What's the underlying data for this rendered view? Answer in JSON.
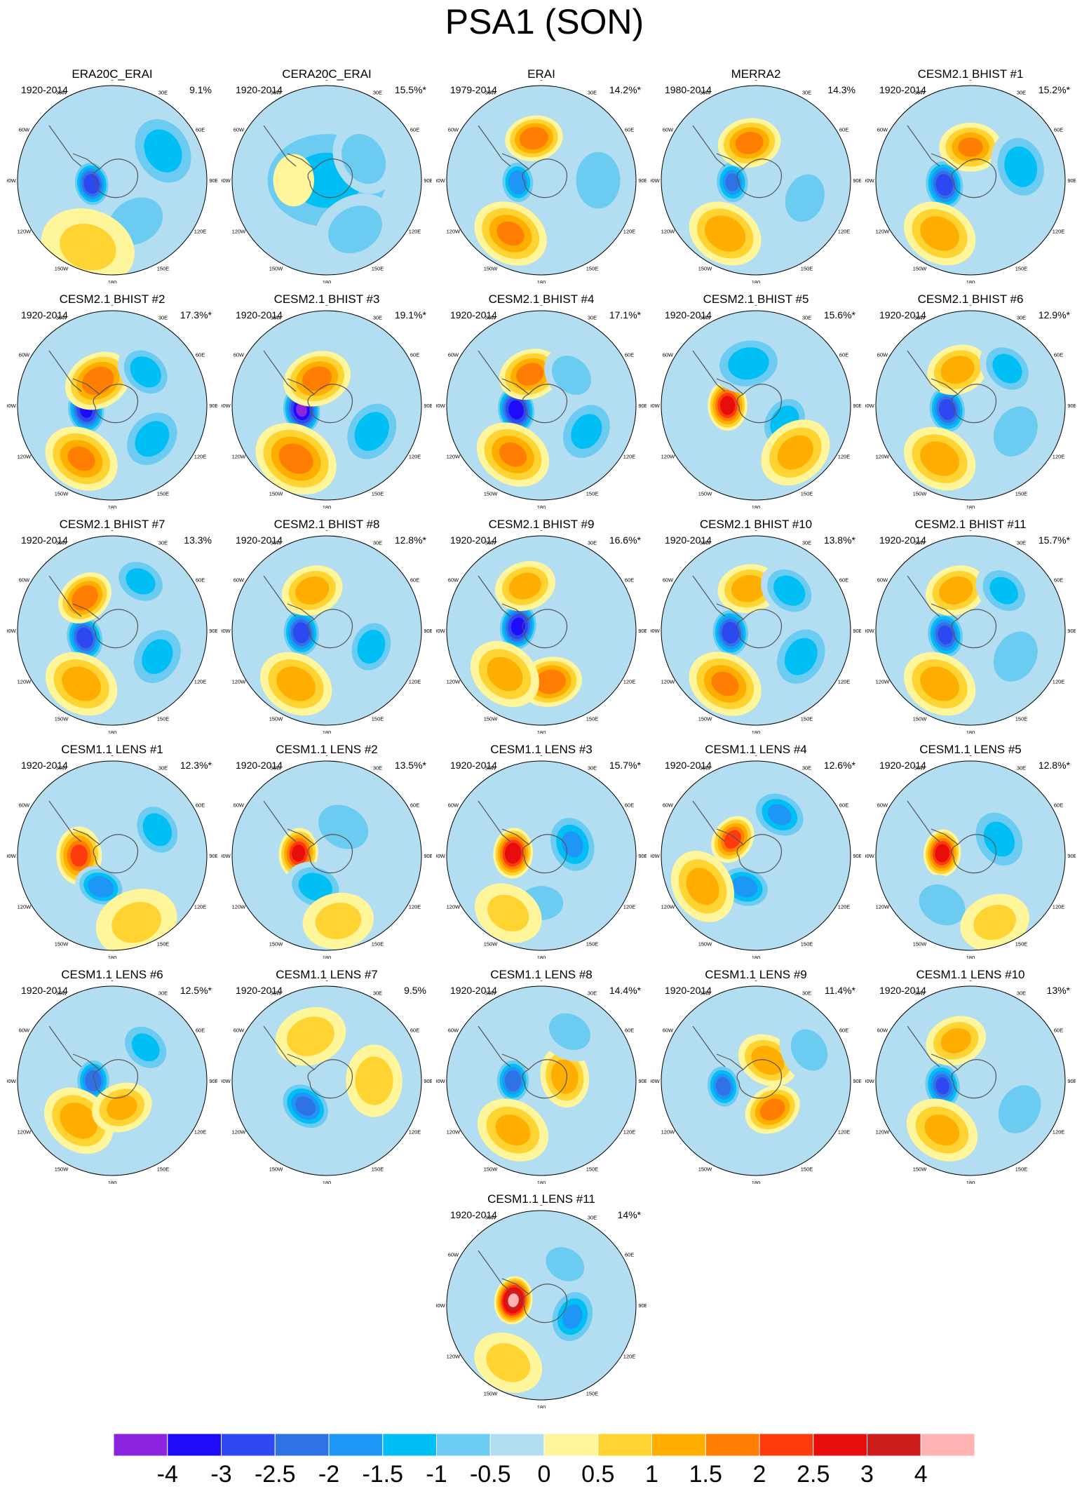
{
  "title": "PSA1 (SON)",
  "longitude_labels": [
    "0",
    "30E",
    "60E",
    "90E",
    "120E",
    "150E",
    "180",
    "150W",
    "120W",
    "90W",
    "60W",
    "30W"
  ],
  "panels": [
    {
      "title": "ERA20C_ERAI",
      "period": "1920-2014",
      "pct": "9.1%",
      "map": {
        "centers": [
          {
            "lon": -100,
            "r": 0.22,
            "v": -3.2,
            "w": 0.14
          },
          {
            "lon": 60,
            "r": 0.62,
            "v": -1.5,
            "w": 0.3
          },
          {
            "lon": 150,
            "r": 0.5,
            "v": -1.0,
            "w": 0.3
          },
          {
            "lon": -160,
            "r": 0.75,
            "v": 0.8,
            "w": 0.35
          }
        ]
      }
    },
    {
      "title": "CERA20C_ERAI",
      "period": "1920-2014",
      "pct": "15.5%*",
      "map": {
        "centers": [
          {
            "lon": 0,
            "r": 0.0,
            "v": -1.3,
            "w": 0.6
          },
          {
            "lon": 60,
            "r": 0.45,
            "v": -1.2,
            "w": 0.25
          },
          {
            "lon": -90,
            "r": 0.35,
            "v": 0.7,
            "w": 0.18
          },
          {
            "lon": 150,
            "r": 0.6,
            "v": -1.0,
            "w": 0.3
          }
        ]
      }
    },
    {
      "title": "ERAI",
      "period": "1979-2014",
      "pct": "14.2%*",
      "map": {
        "centers": [
          {
            "lon": -95,
            "r": 0.25,
            "v": -2.2,
            "w": 0.14
          },
          {
            "lon": -10,
            "r": 0.45,
            "v": 2.2,
            "w": 0.18
          },
          {
            "lon": -150,
            "r": 0.65,
            "v": 1.8,
            "w": 0.25
          },
          {
            "lon": 90,
            "r": 0.6,
            "v": -1.0,
            "w": 0.3
          }
        ]
      }
    },
    {
      "title": "MERRA2",
      "period": "1980-2014",
      "pct": "14.3%",
      "map": {
        "centers": [
          {
            "lon": -95,
            "r": 0.25,
            "v": -2.3,
            "w": 0.14
          },
          {
            "lon": -10,
            "r": 0.4,
            "v": 2.0,
            "w": 0.2
          },
          {
            "lon": -150,
            "r": 0.65,
            "v": 1.7,
            "w": 0.25
          },
          {
            "lon": 110,
            "r": 0.55,
            "v": -1.0,
            "w": 0.25
          }
        ]
      }
    },
    {
      "title": "CESM2.1 BHIST #1",
      "period": "1920-2014",
      "pct": "15.2%*",
      "map": {
        "centers": [
          {
            "lon": -100,
            "r": 0.28,
            "v": -3.2,
            "w": 0.16
          },
          {
            "lon": 0,
            "r": 0.35,
            "v": 1.8,
            "w": 0.2
          },
          {
            "lon": -150,
            "r": 0.65,
            "v": 1.6,
            "w": 0.25
          },
          {
            "lon": 75,
            "r": 0.55,
            "v": -1.6,
            "w": 0.25
          }
        ]
      }
    },
    {
      "title": "CESM2.1 BHIST #2",
      "period": "1920-2014",
      "pct": "17.3%*",
      "map": {
        "centers": [
          {
            "lon": -100,
            "r": 0.28,
            "v": -3.6,
            "w": 0.15
          },
          {
            "lon": -30,
            "r": 0.3,
            "v": 2.2,
            "w": 0.22
          },
          {
            "lon": -150,
            "r": 0.65,
            "v": 1.8,
            "w": 0.25
          },
          {
            "lon": 45,
            "r": 0.5,
            "v": -1.6,
            "w": 0.2
          },
          {
            "lon": 130,
            "r": 0.55,
            "v": -1.5,
            "w": 0.25
          }
        ]
      }
    },
    {
      "title": "CESM2.1 BHIST #3",
      "period": "1920-2014",
      "pct": "19.1%*",
      "map": {
        "centers": [
          {
            "lon": -100,
            "r": 0.27,
            "v": -4.2,
            "w": 0.15
          },
          {
            "lon": -20,
            "r": 0.3,
            "v": 2.0,
            "w": 0.22
          },
          {
            "lon": -150,
            "r": 0.65,
            "v": 2.0,
            "w": 0.28
          },
          {
            "lon": 120,
            "r": 0.55,
            "v": -1.6,
            "w": 0.25
          }
        ]
      }
    },
    {
      "title": "CESM2.1 BHIST #4",
      "period": "1920-2014",
      "pct": "17.1%*",
      "map": {
        "centers": [
          {
            "lon": -100,
            "r": 0.27,
            "v": -4.0,
            "w": 0.15
          },
          {
            "lon": -20,
            "r": 0.35,
            "v": 2.0,
            "w": 0.2
          },
          {
            "lon": -150,
            "r": 0.6,
            "v": 1.8,
            "w": 0.25
          },
          {
            "lon": 45,
            "r": 0.45,
            "v": -1.2,
            "w": 0.2
          },
          {
            "lon": 120,
            "r": 0.55,
            "v": -1.4,
            "w": 0.25
          }
        ]
      }
    },
    {
      "title": "CESM2.1 BHIST #5",
      "period": "1920-2014",
      "pct": "15.6%*",
      "map": {
        "centers": [
          {
            "lon": -90,
            "r": 0.3,
            "v": 3.0,
            "w": 0.15
          },
          {
            "lon": -10,
            "r": 0.45,
            "v": -1.6,
            "w": 0.25
          },
          {
            "lon": 120,
            "r": 0.35,
            "v": -1.6,
            "w": 0.2
          },
          {
            "lon": 140,
            "r": 0.65,
            "v": 1.5,
            "w": 0.25
          }
        ]
      }
    },
    {
      "title": "CESM2.1 BHIST #6",
      "period": "1920-2014",
      "pct": "12.9%*",
      "map": {
        "centers": [
          {
            "lon": -100,
            "r": 0.25,
            "v": -3.2,
            "w": 0.15
          },
          {
            "lon": -20,
            "r": 0.4,
            "v": 1.6,
            "w": 0.2
          },
          {
            "lon": -150,
            "r": 0.65,
            "v": 1.6,
            "w": 0.25
          },
          {
            "lon": 45,
            "r": 0.55,
            "v": -1.5,
            "w": 0.2
          },
          {
            "lon": 120,
            "r": 0.55,
            "v": -1.2,
            "w": 0.25
          }
        ]
      }
    },
    {
      "title": "CESM2.1 BHIST #7",
      "period": "1920-2014",
      "pct": "13.3%",
      "map": {
        "centers": [
          {
            "lon": -105,
            "r": 0.3,
            "v": -3.2,
            "w": 0.15
          },
          {
            "lon": -40,
            "r": 0.45,
            "v": 2.2,
            "w": 0.18
          },
          {
            "lon": -150,
            "r": 0.65,
            "v": 1.6,
            "w": 0.25
          },
          {
            "lon": 30,
            "r": 0.6,
            "v": -1.4,
            "w": 0.2
          },
          {
            "lon": 120,
            "r": 0.55,
            "v": -1.4,
            "w": 0.25
          }
        ]
      }
    },
    {
      "title": "CESM2.1 BHIST #8",
      "period": "1920-2014",
      "pct": "12.8%*",
      "map": {
        "centers": [
          {
            "lon": -95,
            "r": 0.27,
            "v": -3.2,
            "w": 0.15
          },
          {
            "lon": -20,
            "r": 0.45,
            "v": 1.6,
            "w": 0.2
          },
          {
            "lon": -150,
            "r": 0.65,
            "v": 1.6,
            "w": 0.25
          },
          {
            "lon": 110,
            "r": 0.5,
            "v": -1.6,
            "w": 0.2
          }
        ]
      }
    },
    {
      "title": "CESM2.1 BHIST #9",
      "period": "1920-2014",
      "pct": "16.6%*",
      "map": {
        "centers": [
          {
            "lon": -80,
            "r": 0.25,
            "v": -3.8,
            "w": 0.15
          },
          {
            "lon": -20,
            "r": 0.5,
            "v": 1.5,
            "w": 0.2
          },
          {
            "lon": 170,
            "r": 0.55,
            "v": 2.2,
            "w": 0.2
          },
          {
            "lon": -140,
            "r": 0.6,
            "v": 1.5,
            "w": 0.25
          }
        ]
      }
    },
    {
      "title": "CESM2.1 BHIST #10",
      "period": "1920-2014",
      "pct": "13.8%*",
      "map": {
        "centers": [
          {
            "lon": -95,
            "r": 0.27,
            "v": -3.3,
            "w": 0.15
          },
          {
            "lon": -10,
            "r": 0.45,
            "v": 1.6,
            "w": 0.2
          },
          {
            "lon": -150,
            "r": 0.65,
            "v": 1.8,
            "w": 0.25
          },
          {
            "lon": 40,
            "r": 0.55,
            "v": -1.6,
            "w": 0.2
          },
          {
            "lon": 120,
            "r": 0.55,
            "v": -1.5,
            "w": 0.25
          }
        ]
      }
    },
    {
      "title": "CESM2.1 BHIST #11",
      "period": "1920-2014",
      "pct": "15.7%*",
      "map": {
        "centers": [
          {
            "lon": -100,
            "r": 0.27,
            "v": -3.0,
            "w": 0.15
          },
          {
            "lon": -20,
            "r": 0.45,
            "v": 1.6,
            "w": 0.2
          },
          {
            "lon": -150,
            "r": 0.65,
            "v": 1.6,
            "w": 0.25
          },
          {
            "lon": 40,
            "r": 0.55,
            "v": -1.4,
            "w": 0.2
          },
          {
            "lon": 120,
            "r": 0.55,
            "v": -1.2,
            "w": 0.25
          }
        ]
      }
    },
    {
      "title": "CESM1.1 LENS #1",
      "period": "1920-2014",
      "pct": "12.3%*",
      "map": {
        "centers": [
          {
            "lon": -90,
            "r": 0.35,
            "v": 2.4,
            "w": 0.18
          },
          {
            "lon": -160,
            "r": 0.35,
            "v": -2.2,
            "w": 0.16
          },
          {
            "lon": 60,
            "r": 0.55,
            "v": -1.6,
            "w": 0.2
          },
          {
            "lon": 160,
            "r": 0.75,
            "v": 0.8,
            "w": 0.3
          }
        ]
      }
    },
    {
      "title": "CESM1.1 LENS #2",
      "period": "1920-2014",
      "pct": "13.5%*",
      "map": {
        "centers": [
          {
            "lon": -85,
            "r": 0.3,
            "v": 2.8,
            "w": 0.15
          },
          {
            "lon": -160,
            "r": 0.35,
            "v": -1.6,
            "w": 0.2
          },
          {
            "lon": 30,
            "r": 0.35,
            "v": -1.2,
            "w": 0.25
          },
          {
            "lon": 170,
            "r": 0.7,
            "v": 0.9,
            "w": 0.25
          }
        ]
      }
    },
    {
      "title": "CESM1.1 LENS #3",
      "period": "1920-2014",
      "pct": "15.7%*",
      "map": {
        "centers": [
          {
            "lon": -85,
            "r": 0.3,
            "v": 3.2,
            "w": 0.15
          },
          {
            "lon": 70,
            "r": 0.35,
            "v": -1.8,
            "w": 0.22
          },
          {
            "lon": 180,
            "r": 0.5,
            "v": -1.2,
            "w": 0.2
          },
          {
            "lon": -150,
            "r": 0.7,
            "v": 0.8,
            "w": 0.25
          }
        ]
      }
    },
    {
      "title": "CESM1.1 LENS #4",
      "period": "1920-2014",
      "pct": "12.6%*",
      "map": {
        "centers": [
          {
            "lon": -55,
            "r": 0.3,
            "v": 2.4,
            "w": 0.15
          },
          {
            "lon": -160,
            "r": 0.35,
            "v": -2.0,
            "w": 0.18
          },
          {
            "lon": 30,
            "r": 0.5,
            "v": -1.8,
            "w": 0.2
          },
          {
            "lon": -120,
            "r": 0.65,
            "v": 1.5,
            "w": 0.25
          }
        ]
      }
    },
    {
      "title": "CESM1.1 LENS #5",
      "period": "1920-2014",
      "pct": "12.8%*",
      "map": {
        "centers": [
          {
            "lon": -85,
            "r": 0.3,
            "v": 3.0,
            "w": 0.14
          },
          {
            "lon": 60,
            "r": 0.35,
            "v": -1.4,
            "w": 0.25
          },
          {
            "lon": -150,
            "r": 0.6,
            "v": -1.0,
            "w": 0.25
          },
          {
            "lon": 160,
            "r": 0.75,
            "v": 0.8,
            "w": 0.25
          }
        ]
      }
    },
    {
      "title": "CESM1.1 LENS #6",
      "period": "1920-2014",
      "pct": "12.5%*",
      "map": {
        "centers": [
          {
            "lon": -90,
            "r": 0.2,
            "v": -2.6,
            "w": 0.14
          },
          {
            "lon": -140,
            "r": 0.55,
            "v": 1.6,
            "w": 0.25
          },
          {
            "lon": 160,
            "r": 0.3,
            "v": 1.4,
            "w": 0.2
          },
          {
            "lon": 45,
            "r": 0.5,
            "v": -1.4,
            "w": 0.2
          }
        ]
      }
    },
    {
      "title": "CESM1.1 LENS #7",
      "period": "1920-2014",
      "pct": "9.5%",
      "map": {
        "centers": [
          {
            "lon": -140,
            "r": 0.35,
            "v": -2.4,
            "w": 0.18
          },
          {
            "lon": -20,
            "r": 0.5,
            "v": 1.0,
            "w": 0.25
          },
          {
            "lon": 90,
            "r": 0.5,
            "v": 1.0,
            "w": 0.25
          },
          {
            "lon": 160,
            "r": 0.8,
            "v": -0.6,
            "w": 0.3
          }
        ]
      }
    },
    {
      "title": "CESM1.1 LENS #8",
      "period": "1920-2014",
      "pct": "14.4%*",
      "map": {
        "centers": [
          {
            "lon": -90,
            "r": 0.3,
            "v": -2.6,
            "w": 0.14
          },
          {
            "lon": 80,
            "r": 0.25,
            "v": 1.6,
            "w": 0.2
          },
          {
            "lon": -150,
            "r": 0.6,
            "v": 1.4,
            "w": 0.25
          },
          {
            "lon": 30,
            "r": 0.6,
            "v": -0.8,
            "w": 0.25
          }
        ]
      }
    },
    {
      "title": "CESM1.1 LENS #9",
      "period": "1920-2014",
      "pct": "11.4%*",
      "map": {
        "centers": [
          {
            "lon": -100,
            "r": 0.35,
            "v": -2.4,
            "w": 0.14
          },
          {
            "lon": 150,
            "r": 0.35,
            "v": 2.0,
            "w": 0.18
          },
          {
            "lon": 30,
            "r": 0.25,
            "v": 1.6,
            "w": 0.2
          },
          {
            "lon": 60,
            "r": 0.65,
            "v": -0.8,
            "w": 0.25
          }
        ]
      }
    },
    {
      "title": "CESM1.1 LENS #10",
      "period": "1920-2014",
      "pct": "13%*",
      "map": {
        "centers": [
          {
            "lon": -100,
            "r": 0.3,
            "v": -2.8,
            "w": 0.15
          },
          {
            "lon": -20,
            "r": 0.45,
            "v": 1.4,
            "w": 0.2
          },
          {
            "lon": -150,
            "r": 0.6,
            "v": 1.4,
            "w": 0.25
          },
          {
            "lon": 120,
            "r": 0.6,
            "v": -0.8,
            "w": 0.3
          }
        ]
      }
    },
    {
      "title": "CESM1.1 LENS #11",
      "period": "1920-2014",
      "pct": "14%*",
      "map": {
        "centers": [
          {
            "lon": -80,
            "r": 0.3,
            "v": 4.2,
            "w": 0.14
          },
          {
            "lon": 110,
            "r": 0.35,
            "v": -1.8,
            "w": 0.2
          },
          {
            "lon": 30,
            "r": 0.5,
            "v": -1.0,
            "w": 0.2
          },
          {
            "lon": -150,
            "r": 0.7,
            "v": 0.9,
            "w": 0.25
          }
        ]
      }
    }
  ],
  "colorbar": {
    "labels": [
      "-4",
      "-3",
      "-2.5",
      "-2",
      "-1.5",
      "-1",
      "-0.5",
      "0",
      "0.5",
      "1",
      "1.5",
      "2",
      "2.5",
      "3",
      "4"
    ],
    "colors": [
      "#8c23e0",
      "#1e0bfa",
      "#2d48f0",
      "#2e72e6",
      "#1e96f5",
      "#00bff5",
      "#6ccbf0",
      "#b3def2",
      "#fff69c",
      "#ffd331",
      "#ffae00",
      "#ff7d00",
      "#ff3a0d",
      "#e80d0d",
      "#cc1c1c",
      "#ffb3b3"
    ]
  }
}
